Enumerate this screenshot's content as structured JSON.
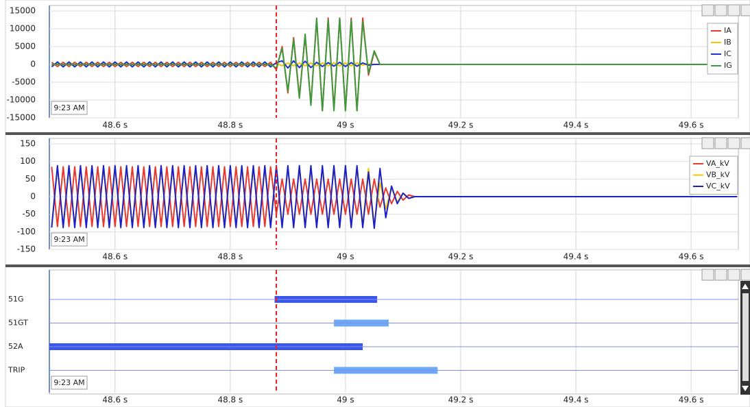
{
  "chart_data": [
    {
      "type": "line",
      "legend": "upper right",
      "grid": true,
      "marker_x": 48.88,
      "time_label": "9:23 AM",
      "xlim": [
        48.486,
        49.682
      ],
      "xticks": [
        {
          "value": 48.6,
          "label": "48.6 s"
        },
        {
          "value": 48.8,
          "label": "48.8 s"
        },
        {
          "value": 49,
          "label": "49 s"
        },
        {
          "value": 49.2,
          "label": "49.2 s"
        },
        {
          "value": 49.4,
          "label": "49.4 s"
        },
        {
          "value": 49.6,
          "label": "49.6 s"
        }
      ],
      "ylim": [
        -15000,
        15000
      ],
      "yticks": [
        -15000,
        -10000,
        -5000,
        0,
        5000,
        10000,
        15000
      ],
      "x": [
        48.49,
        48.5,
        48.51,
        48.52,
        48.53,
        48.54,
        48.55,
        48.56,
        48.57,
        48.58,
        48.59,
        48.6,
        48.61,
        48.62,
        48.63,
        48.64,
        48.65,
        48.66,
        48.67,
        48.68,
        48.69,
        48.7,
        48.71,
        48.72,
        48.73,
        48.74,
        48.75,
        48.76,
        48.77,
        48.78,
        48.79,
        48.8,
        48.81,
        48.82,
        48.83,
        48.84,
        48.85,
        48.86,
        48.87,
        48.88,
        48.89,
        48.9,
        48.91,
        48.92,
        48.93,
        48.94,
        48.95,
        48.96,
        48.97,
        48.98,
        48.99,
        49,
        49.01,
        49.02,
        49.03,
        49.04,
        49.05,
        49.06,
        49.68
      ],
      "series": [
        {
          "name": "IA",
          "color": "#e8392f",
          "values": [
            600,
            -600,
            600,
            -600,
            600,
            -600,
            600,
            -600,
            600,
            -600,
            600,
            -600,
            600,
            -600,
            600,
            -600,
            600,
            -600,
            600,
            -600,
            600,
            -600,
            600,
            -600,
            600,
            -600,
            600,
            -600,
            600,
            -600,
            600,
            -600,
            600,
            -600,
            600,
            -600,
            600,
            -600,
            600,
            -1500,
            5000,
            -8000,
            7500,
            -9000,
            8000,
            -11000,
            12500,
            -13000,
            13000,
            -12500,
            13000,
            -13000,
            13000,
            -13000,
            13000,
            -3000,
            3500,
            0,
            0
          ]
        },
        {
          "name": "IB",
          "color": "#f3c800",
          "values": [
            -500,
            500,
            -500,
            500,
            -500,
            500,
            -500,
            500,
            -500,
            500,
            -500,
            500,
            -500,
            500,
            -500,
            500,
            -500,
            500,
            -500,
            500,
            -500,
            500,
            -500,
            500,
            -500,
            500,
            -500,
            500,
            -500,
            500,
            -500,
            500,
            -500,
            500,
            -500,
            500,
            -500,
            500,
            -500,
            300,
            -400,
            400,
            -400,
            400,
            -400,
            400,
            -400,
            400,
            -400,
            400,
            -400,
            400,
            -400,
            400,
            -200,
            100,
            0,
            0,
            0
          ]
        },
        {
          "name": "IC",
          "color": "#1f2fd8",
          "values": [
            -700,
            700,
            -700,
            700,
            -700,
            700,
            -700,
            700,
            -700,
            700,
            -700,
            700,
            -700,
            700,
            -700,
            700,
            -700,
            700,
            -700,
            700,
            -700,
            700,
            -700,
            700,
            -700,
            700,
            -700,
            700,
            -700,
            700,
            -700,
            700,
            -700,
            700,
            -700,
            700,
            -700,
            700,
            -700,
            500,
            1000,
            -1000,
            1000,
            -900,
            900,
            -900,
            600,
            -600,
            500,
            -500,
            600,
            -600,
            500,
            -500,
            400,
            -200,
            0,
            0,
            0
          ]
        },
        {
          "name": "IG",
          "color": "#3c9a3c",
          "values": [
            0,
            0,
            0,
            0,
            0,
            0,
            0,
            0,
            0,
            0,
            0,
            0,
            0,
            0,
            0,
            0,
            0,
            0,
            0,
            0,
            0,
            0,
            0,
            0,
            0,
            0,
            0,
            0,
            0,
            0,
            0,
            0,
            0,
            0,
            0,
            0,
            0,
            0,
            0,
            -1000,
            4500,
            -7500,
            7000,
            -9500,
            8500,
            -11500,
            13000,
            -13000,
            12500,
            -13000,
            13000,
            -13000,
            12500,
            -13000,
            12000,
            -2500,
            3800,
            0,
            0
          ]
        }
      ]
    },
    {
      "type": "line",
      "legend": "upper right",
      "grid": true,
      "marker_x": 48.88,
      "time_label": "9:23 AM",
      "xlim": [
        48.486,
        49.682
      ],
      "xticks": [
        {
          "value": 48.6,
          "label": "48.6 s"
        },
        {
          "value": 48.8,
          "label": "48.8 s"
        },
        {
          "value": 49,
          "label": "49 s"
        },
        {
          "value": 49.2,
          "label": "49.2 s"
        },
        {
          "value": 49.4,
          "label": "49.4 s"
        },
        {
          "value": 49.6,
          "label": "49.6 s"
        }
      ],
      "ylim": [
        -150,
        150
      ],
      "yticks": [
        -150,
        -100,
        -50,
        0,
        50,
        100,
        150
      ],
      "x": [
        48.49,
        48.5,
        48.51,
        48.52,
        48.53,
        48.54,
        48.55,
        48.56,
        48.57,
        48.58,
        48.59,
        48.6,
        48.61,
        48.62,
        48.63,
        48.64,
        48.65,
        48.66,
        48.67,
        48.68,
        48.69,
        48.7,
        48.71,
        48.72,
        48.73,
        48.74,
        48.75,
        48.76,
        48.77,
        48.78,
        48.79,
        48.8,
        48.81,
        48.82,
        48.83,
        48.84,
        48.85,
        48.86,
        48.87,
        48.88,
        48.89,
        48.9,
        48.91,
        48.92,
        48.93,
        48.94,
        48.95,
        48.96,
        48.97,
        48.98,
        48.99,
        49,
        49.01,
        49.02,
        49.03,
        49.04,
        49.05,
        49.06,
        49.07,
        49.08,
        49.09,
        49.1,
        49.11,
        49.12,
        49.68
      ],
      "series": [
        {
          "name": "VA_kV",
          "color": "#e8392f",
          "values": [
            85,
            -85,
            85,
            -85,
            85,
            -85,
            85,
            -85,
            85,
            -85,
            85,
            -85,
            85,
            -85,
            85,
            -85,
            85,
            -85,
            85,
            -85,
            85,
            -85,
            85,
            -85,
            85,
            -85,
            85,
            -85,
            85,
            -85,
            85,
            -85,
            85,
            -85,
            85,
            -85,
            85,
            -85,
            85,
            -50,
            50,
            -50,
            50,
            -50,
            50,
            -50,
            50,
            -50,
            50,
            -50,
            50,
            -50,
            50,
            -50,
            50,
            -50,
            50,
            -30,
            25,
            -20,
            15,
            -10,
            5,
            0,
            0
          ]
        },
        {
          "name": "VB_kV",
          "color": "#f3c800",
          "values": [
            -80,
            80,
            -80,
            80,
            -80,
            80,
            -80,
            80,
            -80,
            80,
            -80,
            80,
            -80,
            80,
            -80,
            80,
            -80,
            80,
            -80,
            80,
            -80,
            80,
            -80,
            80,
            -80,
            80,
            -80,
            80,
            -80,
            80,
            -80,
            80,
            -80,
            80,
            -80,
            80,
            -80,
            80,
            -80,
            80,
            -80,
            80,
            -80,
            80,
            -80,
            80,
            -80,
            80,
            -80,
            80,
            -80,
            80,
            -80,
            80,
            -80,
            80,
            -80,
            40,
            -35,
            25,
            -15,
            10,
            -5,
            0,
            0
          ]
        },
        {
          "name": "VC_kV",
          "color": "#1b1fc8",
          "values": [
            -88,
            88,
            -88,
            88,
            -88,
            88,
            -88,
            88,
            -88,
            88,
            -88,
            88,
            -88,
            88,
            -88,
            88,
            -88,
            88,
            -88,
            88,
            -88,
            88,
            -88,
            88,
            -88,
            88,
            -88,
            88,
            -88,
            88,
            -88,
            88,
            -88,
            88,
            -88,
            88,
            -88,
            88,
            -88,
            88,
            -88,
            88,
            -88,
            88,
            -88,
            88,
            -88,
            88,
            -88,
            88,
            -88,
            88,
            -88,
            88,
            -88,
            70,
            -90,
            80,
            -60,
            30,
            -20,
            10,
            -5,
            0,
            0
          ]
        }
      ]
    },
    {
      "type": "timeline",
      "marker_x": 48.88,
      "time_label": "9:23 AM",
      "xlim": [
        48.486,
        49.682
      ],
      "xticks": [
        {
          "value": 48.6,
          "label": "48.6 s"
        },
        {
          "value": 48.8,
          "label": "48.8 s"
        },
        {
          "value": 49,
          "label": "49 s"
        },
        {
          "value": 49.2,
          "label": "49.2 s"
        },
        {
          "value": 49.4,
          "label": "49.4 s"
        },
        {
          "value": 49.6,
          "label": "49.6 s"
        }
      ],
      "rows": [
        {
          "name": "51G",
          "start": 48.877,
          "end": 49.055,
          "color": "#3a57e8"
        },
        {
          "name": "51GT",
          "start": 48.98,
          "end": 49.075,
          "color": "#6fa8f5"
        },
        {
          "name": "52A",
          "start": 48.486,
          "end": 49.03,
          "color": "#3a57e8"
        },
        {
          "name": "TRIP",
          "start": 48.98,
          "end": 49.16,
          "color": "#6fa8f5"
        }
      ]
    }
  ]
}
